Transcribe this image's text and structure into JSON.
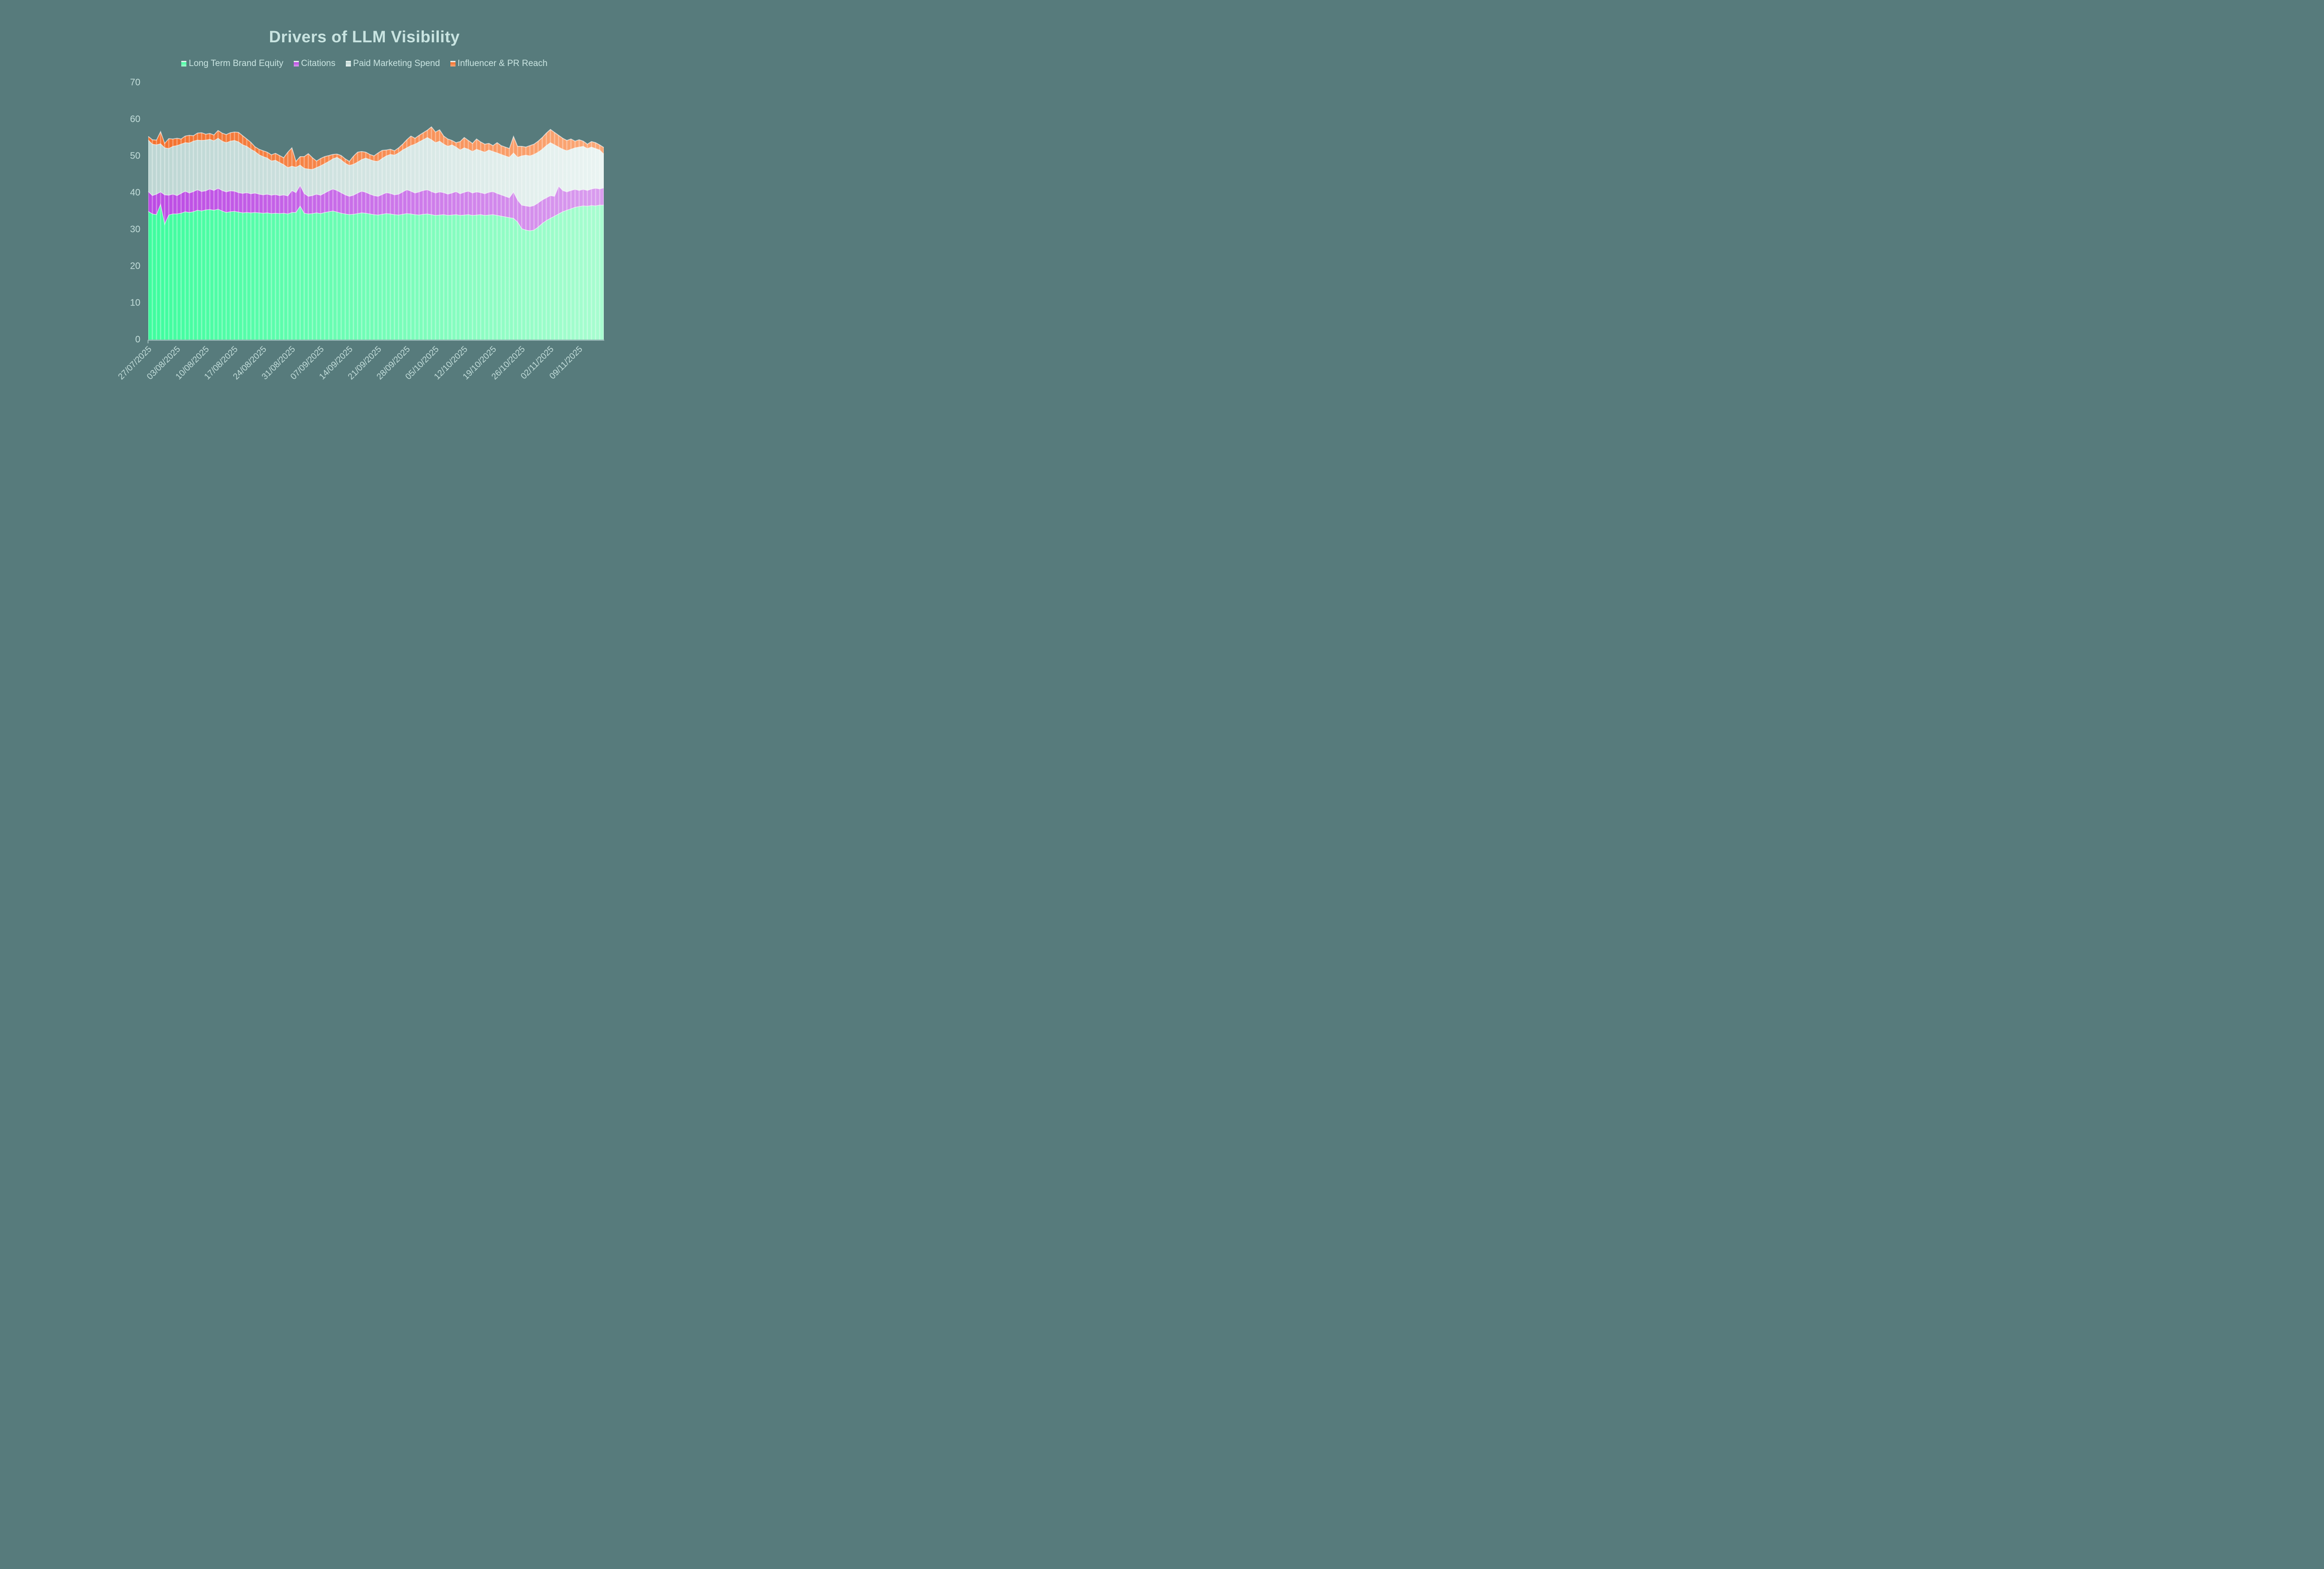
{
  "title": "Drivers of LLM Visibility",
  "colors": {
    "background": "#577B7C",
    "title_text": "#C9E4E1",
    "axis_text": "#C2DDDA",
    "axis_line": "#9FBEBD",
    "gridline_stripe": "rgba(255,255,255,0.32)",
    "band_edge": "rgba(255,255,255,0.62)"
  },
  "chart_data": {
    "type": "area",
    "stacked": true,
    "title": "Drivers of LLM Visibility",
    "legend_position": "top",
    "grid": "vertical category stripes inside plotted area only",
    "xlabel": "",
    "ylabel": "",
    "ylim": [
      0,
      70
    ],
    "y_ticks": [
      0,
      10,
      20,
      30,
      40,
      50,
      60,
      70
    ],
    "n_points": 112,
    "x_start_label": "27/07/2025",
    "x_tick_indices": [
      0,
      7,
      14,
      21,
      28,
      35,
      42,
      49,
      56,
      63,
      70,
      77,
      84,
      91,
      98,
      105
    ],
    "x_tick_labels": [
      "27/07/2025",
      "03/08/2025",
      "10/08/2025",
      "17/08/2025",
      "24/08/2025",
      "31/08/2025",
      "07/09/2025",
      "14/09/2025",
      "21/09/2025",
      "28/09/2025",
      "05/10/2025",
      "12/10/2025",
      "19/10/2025",
      "26/10/2025",
      "02/11/2025",
      "09/11/2025"
    ],
    "series": [
      {
        "name": "Long Term Brand Equity",
        "color": "#3EFD9E",
        "color_light": "#A8FDD0",
        "values": [
          34.9,
          34.2,
          34.0,
          36.8,
          31.4,
          33.9,
          34.2,
          34.2,
          34.4,
          34.8,
          34.6,
          34.8,
          35.2,
          35.0,
          35.3,
          35.4,
          35.2,
          35.5,
          35.0,
          34.6,
          34.8,
          34.9,
          34.7,
          34.5,
          34.6,
          34.5,
          34.6,
          34.5,
          34.4,
          34.5,
          34.3,
          34.4,
          34.3,
          34.4,
          34.2,
          34.6,
          34.6,
          36.3,
          34.4,
          34.2,
          34.3,
          34.5,
          34.3,
          34.6,
          34.8,
          35.0,
          34.7,
          34.4,
          34.2,
          34.0,
          34.1,
          34.3,
          34.5,
          34.4,
          34.2,
          34.0,
          33.9,
          34.1,
          34.3,
          34.2,
          34.0,
          33.9,
          34.1,
          34.3,
          34.2,
          34.0,
          33.9,
          34.1,
          34.2,
          34.0,
          33.8,
          33.9,
          34.0,
          33.8,
          33.9,
          34.0,
          33.8,
          33.9,
          34.0,
          33.8,
          33.9,
          34.0,
          33.8,
          33.9,
          34.0,
          33.8,
          33.6,
          33.4,
          33.2,
          33.0,
          32.0,
          30.2,
          29.8,
          29.6,
          29.8,
          30.6,
          31.6,
          32.4,
          33.0,
          33.6,
          34.2,
          34.8,
          35.2,
          35.6,
          36.0,
          36.2,
          36.4,
          36.3,
          36.5,
          36.4,
          36.6,
          36.6
        ]
      },
      {
        "name": "Citations",
        "color": "#BC4AE4",
        "color_light": "#D99CEE",
        "values": [
          5.4,
          5.0,
          5.6,
          3.4,
          8.0,
          5.4,
          5.4,
          5.0,
          5.4,
          5.6,
          5.3,
          5.5,
          5.6,
          5.3,
          5.2,
          5.6,
          5.4,
          5.7,
          5.6,
          5.6,
          5.7,
          5.5,
          5.3,
          5.3,
          5.4,
          5.2,
          5.3,
          5.1,
          5.0,
          5.1,
          5.0,
          5.1,
          4.9,
          5.0,
          4.9,
          6.0,
          5.4,
          5.7,
          5.4,
          4.8,
          4.9,
          5.1,
          5.0,
          5.3,
          5.7,
          6.0,
          5.9,
          5.6,
          5.2,
          5.0,
          5.2,
          5.6,
          5.9,
          5.7,
          5.4,
          5.2,
          5.1,
          5.4,
          5.7,
          5.6,
          5.4,
          5.7,
          6.1,
          6.5,
          6.2,
          5.9,
          6.3,
          6.5,
          6.6,
          6.3,
          6.1,
          6.3,
          6.0,
          5.8,
          6.0,
          6.3,
          5.9,
          6.2,
          6.4,
          6.1,
          6.3,
          6.0,
          5.9,
          6.2,
          6.3,
          6.0,
          5.8,
          5.6,
          5.4,
          7.2,
          6.0,
          6.4,
          6.6,
          6.6,
          6.7,
          6.6,
          6.4,
          6.2,
          6.2,
          5.4,
          7.6,
          5.8,
          5.0,
          5.0,
          4.9,
          4.4,
          4.5,
          4.3,
          4.5,
          4.8,
          4.4,
          4.7
        ]
      },
      {
        "name": "Paid Marketing Spend",
        "color": "#BDD6D3",
        "color_light": "#EAF4F2",
        "values": [
          14.0,
          14.0,
          13.4,
          13.1,
          12.8,
          12.7,
          13.0,
          13.6,
          13.4,
          13.2,
          13.6,
          13.7,
          13.5,
          13.9,
          13.8,
          13.5,
          13.5,
          13.6,
          13.4,
          13.4,
          13.5,
          13.8,
          13.8,
          13.2,
          12.6,
          12.1,
          11.3,
          10.7,
          10.4,
          9.8,
          9.3,
          9.3,
          9.0,
          8.2,
          7.7,
          6.6,
          6.9,
          5.5,
          6.8,
          7.4,
          7.1,
          7.2,
          8.0,
          8.0,
          8.0,
          8.2,
          9.0,
          8.9,
          8.6,
          8.4,
          8.4,
          8.4,
          8.6,
          9.3,
          9.4,
          9.4,
          9.5,
          9.8,
          10.0,
          10.6,
          10.8,
          11.2,
          11.4,
          11.4,
          12.4,
          13.3,
          13.6,
          13.8,
          14.2,
          14.1,
          13.7,
          13.8,
          13.2,
          13.0,
          13.1,
          12.1,
          11.9,
          12.1,
          11.4,
          11.3,
          11.6,
          11.4,
          11.3,
          11.5,
          10.9,
          11.0,
          11.0,
          11.0,
          11.0,
          10.6,
          11.6,
          13.4,
          13.8,
          13.8,
          13.9,
          13.8,
          13.8,
          14.2,
          14.4,
          14.0,
          10.6,
          11.2,
          11.2,
          11.2,
          11.3,
          11.8,
          11.7,
          11.4,
          11.4,
          10.8,
          10.6,
          9.2
        ]
      },
      {
        "name": "Influencer & PR Reach",
        "color": "#F3702C",
        "color_light": "#FBA877",
        "values": [
          1.0,
          1.2,
          1.3,
          3.3,
          1.2,
          2.7,
          2.0,
          2.0,
          1.4,
          1.8,
          2.1,
          1.5,
          1.9,
          2.1,
          1.6,
          1.6,
          1.6,
          2.1,
          2.2,
          2.2,
          2.3,
          2.3,
          2.6,
          2.5,
          2.0,
          1.9,
          1.3,
          1.5,
          1.6,
          1.6,
          1.7,
          1.9,
          1.9,
          1.9,
          4.2,
          5.0,
          1.6,
          2.3,
          3.2,
          4.2,
          3.2,
          1.8,
          2.0,
          1.9,
          1.6,
          1.2,
          0.9,
          1.2,
          1.2,
          1.1,
          2.2,
          2.7,
          2.2,
          1.6,
          1.4,
          1.4,
          2.3,
          2.2,
          1.6,
          1.4,
          1.2,
          1.4,
          1.6,
          2.2,
          2.6,
          1.6,
          1.8,
          1.9,
          2.0,
          3.5,
          2.9,
          3.1,
          2.2,
          2.0,
          1.2,
          1.2,
          2.3,
          2.8,
          2.4,
          2.2,
          2.8,
          2.4,
          2.2,
          1.8,
          1.6,
          2.8,
          2.4,
          2.4,
          2.4,
          4.5,
          3.0,
          2.6,
          2.2,
          2.8,
          2.8,
          3.0,
          3.2,
          3.4,
          3.6,
          3.4,
          3.2,
          3.0,
          2.8,
          2.8,
          1.8,
          2.0,
          1.4,
          1.2,
          1.5,
          1.6,
          1.4,
          1.8
        ]
      }
    ]
  }
}
